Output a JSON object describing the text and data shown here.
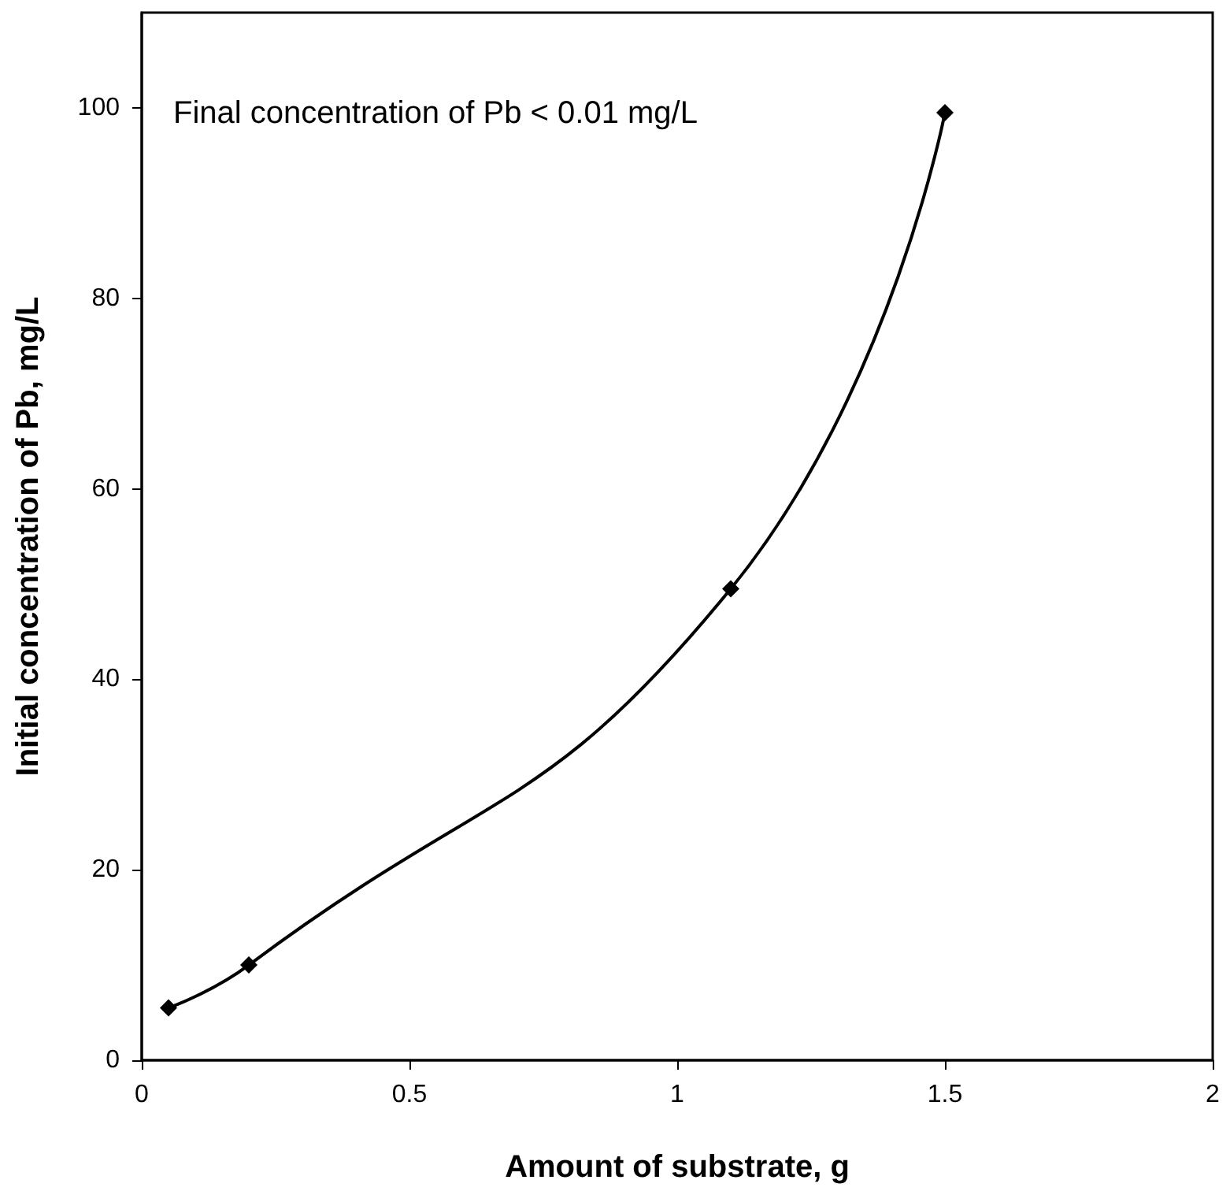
{
  "chart_data": {
    "type": "line",
    "xlabel": "Amount of substrate, g",
    "ylabel": "Initial concentration of Pb, mg/L",
    "annotations": [
      "Final concentration of Pb < 0.01 mg/L"
    ],
    "x": [
      0.05,
      0.2,
      1.1,
      1.5
    ],
    "series": [
      {
        "color": "#000000",
        "values": [
          5.5,
          10,
          49.5,
          99.5
        ]
      }
    ],
    "xlim": [
      0,
      2
    ],
    "xticks": [
      0,
      0.5,
      1,
      1.5,
      2
    ],
    "ylim": [
      0,
      110
    ],
    "yticks": [
      0,
      20,
      40,
      60,
      80,
      100
    ],
    "grid": false,
    "marker": "diamond",
    "line_style": "solid"
  }
}
